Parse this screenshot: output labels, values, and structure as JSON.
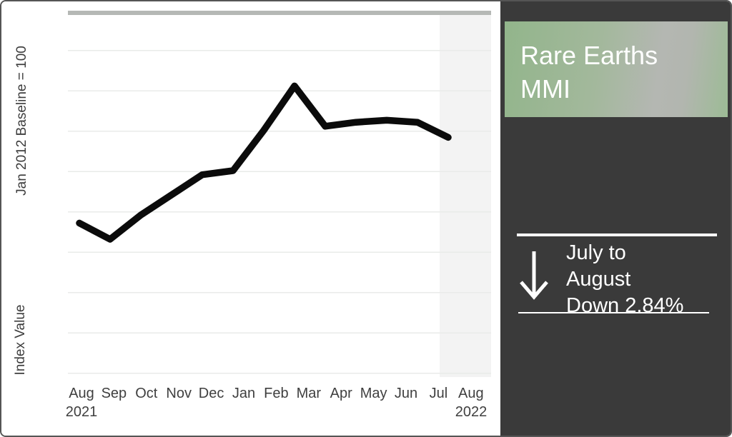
{
  "chart": {
    "y_axis_label_top": "Jan 2012 Baseline = 100",
    "y_axis_label_bottom": "Index Value",
    "x_labels": [
      "Aug",
      "Sep",
      "Oct",
      "Nov",
      "Dec",
      "Jan",
      "Feb",
      "Mar",
      "Apr",
      "May",
      "Jun",
      "Jul",
      "Aug"
    ],
    "year_first": "2021",
    "year_last": "2022"
  },
  "chart_data": {
    "type": "line",
    "title": "Rare Earths MMI",
    "x": [
      "Aug 2021",
      "Sep 2021",
      "Oct 2021",
      "Nov 2021",
      "Dec 2021",
      "Jan 2022",
      "Feb 2022",
      "Mar 2022",
      "Apr 2022",
      "May 2022",
      "Jun 2022",
      "Jul 2022",
      "Aug 2022"
    ],
    "values": [
      107,
      103,
      109,
      114,
      119,
      120,
      130,
      141,
      131,
      132,
      132.5,
      132,
      128.25
    ],
    "xlabel": "",
    "ylabel": "Index Value (Jan 2012 Baseline = 100)",
    "ylim": [
      69,
      160
    ],
    "y_gridline_step": 10,
    "y_tick_labels_shown": false,
    "grid": "horizontal",
    "line_color": "#0b0b0b",
    "highlight_band_months": [
      "Jul 2022",
      "Aug 2022"
    ],
    "highlight_band_color": "#f3f3f3",
    "legend": "none"
  },
  "panel": {
    "title": "Rare Earths MMI",
    "stat_lines": [
      "July to",
      "August",
      "Down 2.84%"
    ],
    "change_direction": "down",
    "change_percent": "2.84%",
    "colors": {
      "panel_bg": "#3a3a3a",
      "accent_green": "#9cbb95",
      "accent_gray": "#b4b7b2",
      "text": "#ffffff"
    }
  }
}
